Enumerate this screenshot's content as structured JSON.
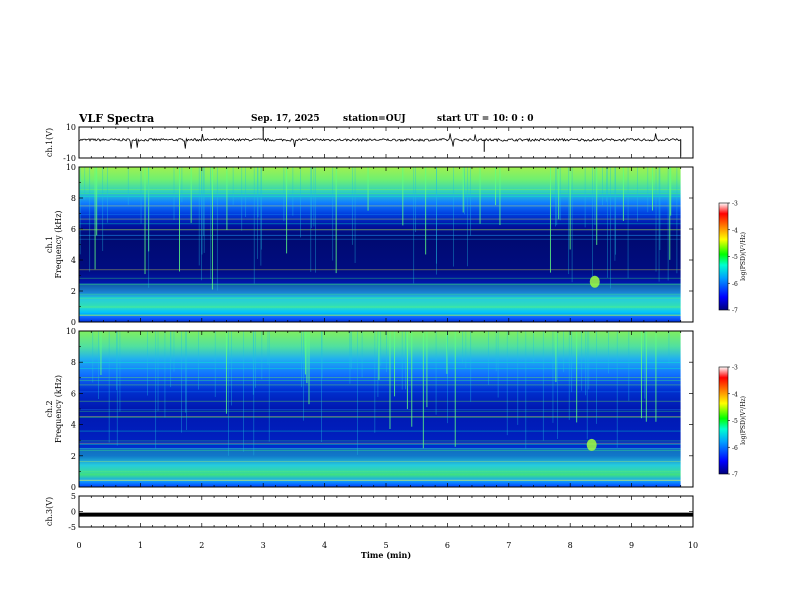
{
  "header": {
    "title": "VLF Spectra",
    "date": "Sep. 17, 2025",
    "station": "station=OUJ",
    "start": "start UT =  10: 0  : 0"
  },
  "chart_data": {
    "type": "heatmap",
    "title": "VLF Spectra",
    "xlabel": "Time (min)",
    "x_ticks": [
      "0",
      "1",
      "2",
      "3",
      "4",
      "5",
      "6",
      "7",
      "8",
      "9",
      "10"
    ],
    "xlim": [
      0,
      10
    ],
    "panels": [
      {
        "id": "ch1-waveform",
        "ylabel": "ch.1(V)",
        "ylim": [
          -10,
          10
        ],
        "y_ticks": [
          "10",
          "-10"
        ],
        "signal": "noise band around ~+2 V with spikes"
      },
      {
        "id": "ch1-spectrogram",
        "ylabel": "ch.1",
        "ylabel2": "Frequency (kHz)",
        "ylim": [
          0,
          10
        ],
        "y_ticks": [
          "0",
          "2",
          "4",
          "6",
          "8",
          "10"
        ],
        "data_end_min": 9.8,
        "emission_band_khz": [
          1,
          2.5
        ],
        "enhancement": {
          "time_min": 8.4,
          "freq_khz": 2.6
        }
      },
      {
        "id": "ch2-spectrogram",
        "ylabel": "ch.2",
        "ylabel2": "Frequency (kHz)",
        "ylim": [
          0,
          10
        ],
        "y_ticks": [
          "0",
          "2",
          "4",
          "6",
          "8",
          "10"
        ],
        "data_end_min": 9.8,
        "emission_band_khz": [
          1,
          2.5
        ],
        "enhancement": {
          "time_min": 8.35,
          "freq_khz": 2.7
        }
      },
      {
        "id": "ch3-waveform",
        "ylabel": "ch.3(V)",
        "ylim": [
          -5,
          5
        ],
        "y_ticks": [
          "5",
          "0",
          "-5"
        ],
        "signal": "flat at about -1 V"
      }
    ],
    "colorbar": {
      "label": "log(PSD)(V²/Hz)",
      "range": [
        -7,
        -3
      ],
      "ticks": [
        "-3",
        "-4",
        "-5",
        "-6",
        "-7"
      ],
      "colors": [
        "#00007a",
        "#0000ff",
        "#00a0ff",
        "#00ffd0",
        "#00ff00",
        "#ffff00",
        "#ff8000",
        "#ff0000",
        "#ffffff"
      ]
    }
  }
}
